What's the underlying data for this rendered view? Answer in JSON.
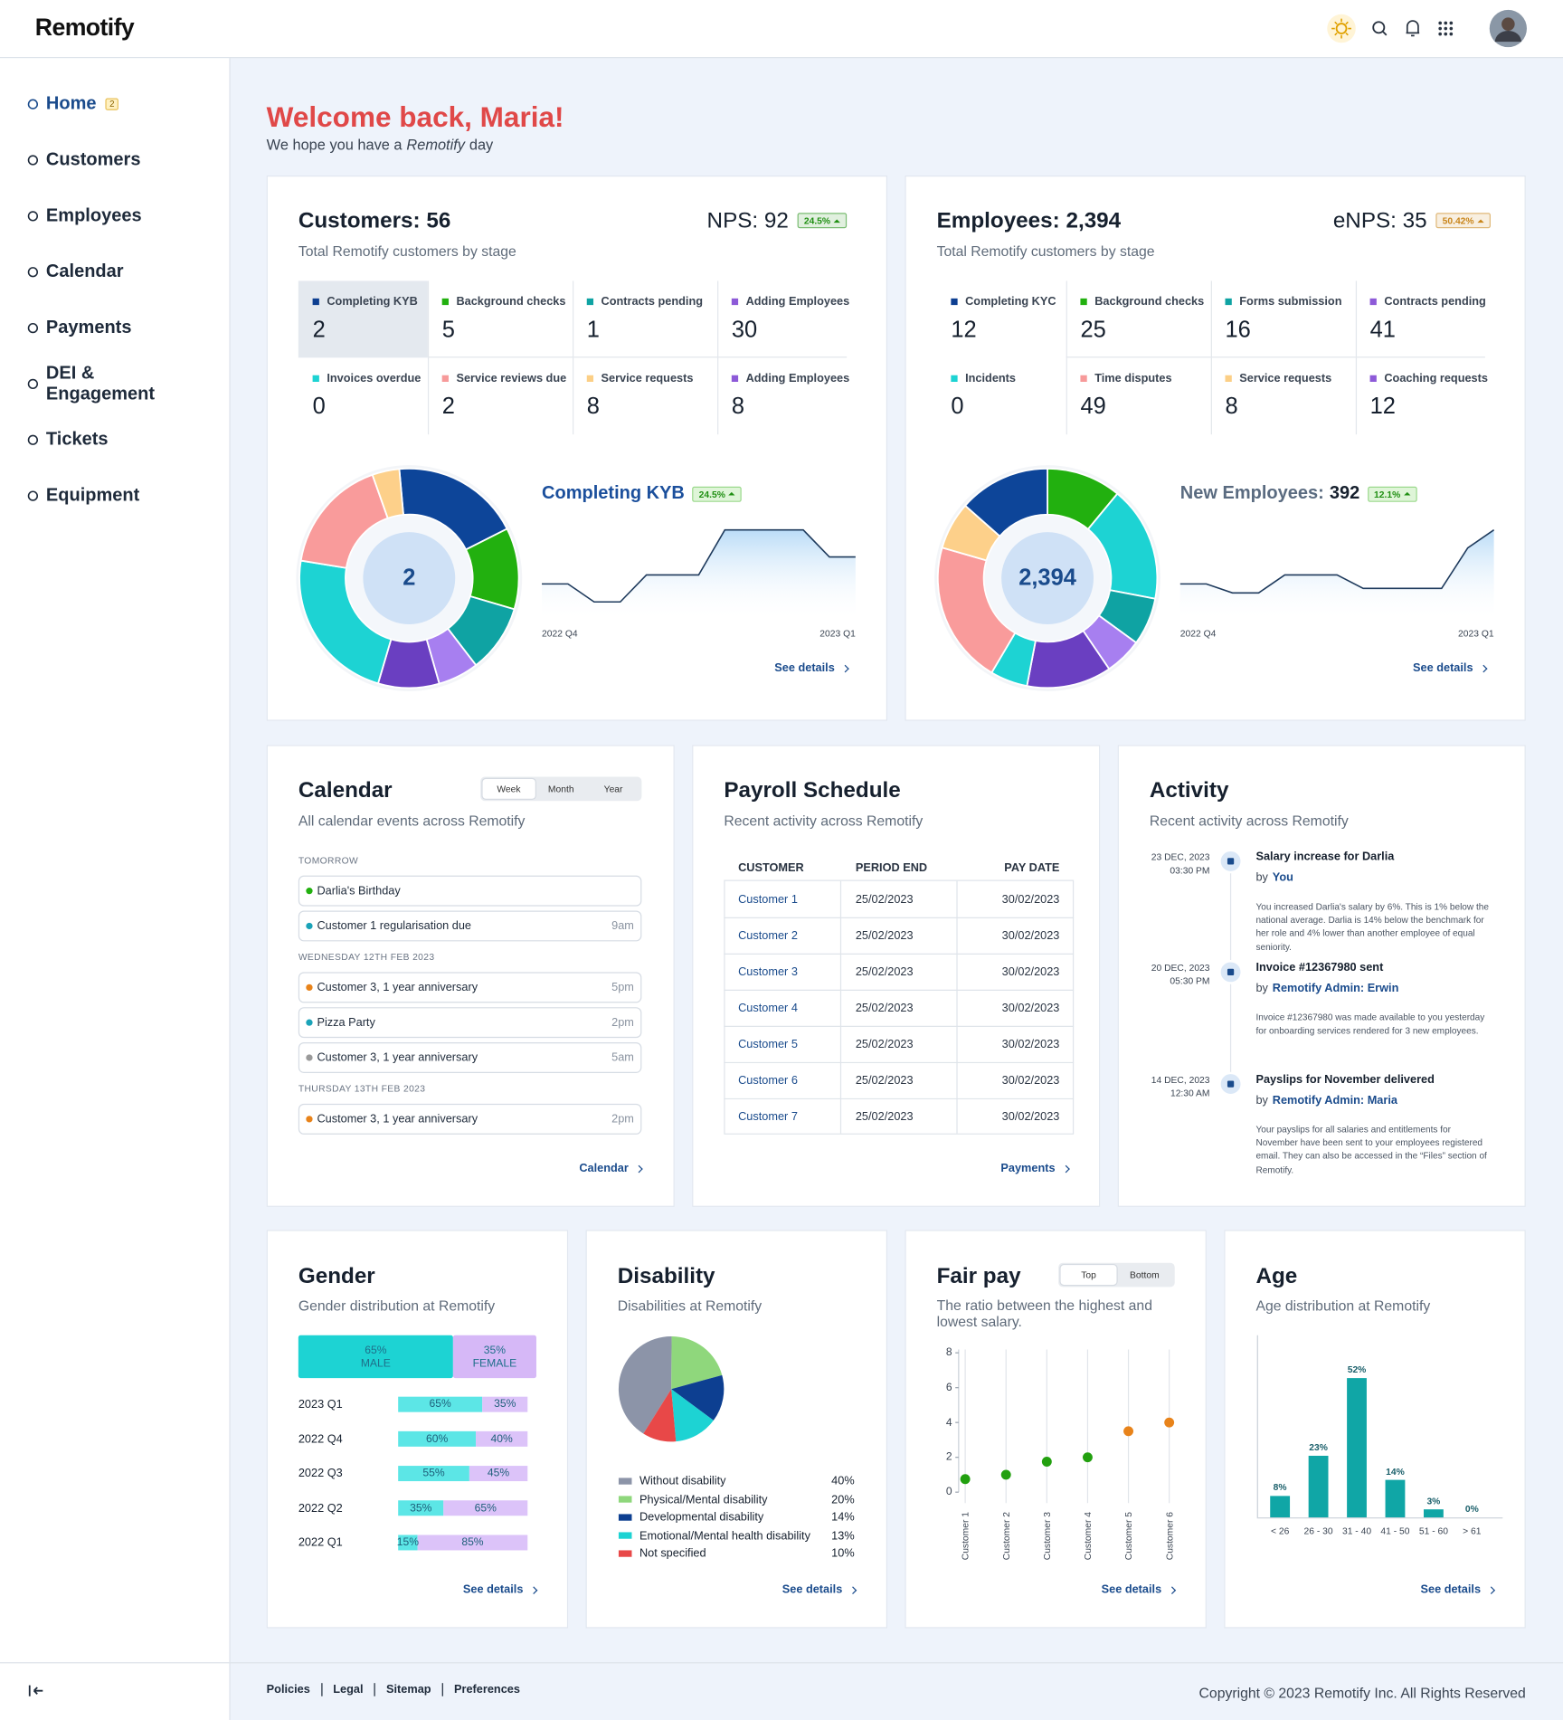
{
  "header": {
    "logo": "Remotify"
  },
  "nav": [
    {
      "label": "Home",
      "badge": "2"
    },
    {
      "label": "Customers"
    },
    {
      "label": "Employees"
    },
    {
      "label": "Calendar"
    },
    {
      "label": "Payments"
    },
    {
      "label": "DEI & Engagement"
    },
    {
      "label": "Tickets"
    },
    {
      "label": "Equipment"
    }
  ],
  "welcome": {
    "title": "Welcome back, Maria!",
    "lead": "We hope you have a",
    "brand": "Remotify",
    "tail": "day"
  },
  "customers": {
    "title": "Customers: 56",
    "score": "NPS: 92",
    "score_change": "24.5%",
    "score_change_color": "#1f8f12",
    "subtitle": "Total Remotify customers by stage",
    "selected_stage": 0,
    "stages": [
      {
        "label": "Completing KYB",
        "value": 2,
        "color": "#0d3f91"
      },
      {
        "label": "Background checks",
        "value": 5,
        "color": "#22b00f"
      },
      {
        "label": "Contracts pending",
        "value": 1,
        "color": "#0fa3a3"
      },
      {
        "label": "Adding Employees",
        "value": 30,
        "color": "#8d5ad8"
      },
      {
        "label": "Invoices overdue",
        "value": 0,
        "color": "#1dd3d3"
      },
      {
        "label": "Service reviews due",
        "value": 2,
        "color": "#f79a9a"
      },
      {
        "label": "Service requests",
        "value": 8,
        "color": "#fccf86"
      },
      {
        "label": "Adding Employees",
        "value": 8,
        "color": "#8d5ad8"
      }
    ],
    "donut": {
      "center": "2",
      "colors": [
        "#0d4599",
        "#22b00f",
        "#0fa3a3",
        "#a77ff0",
        "#6a3fc1",
        "#1dd3d3",
        "#f99b9b",
        "#fdd08a"
      ],
      "values": [
        19,
        12,
        10,
        6,
        9,
        23,
        17,
        4
      ]
    },
    "trend": {
      "title": "Completing KYB",
      "change": "24.5%",
      "x_labels": [
        "2022 Q4",
        "2023 Q1"
      ],
      "values": [
        4,
        4,
        2,
        2,
        5,
        5,
        5,
        10,
        10,
        10,
        10,
        7,
        7
      ]
    },
    "link": "See details"
  },
  "employees": {
    "title": "Employees: 2,394",
    "score": "eNPS: 35",
    "score_change": "50.42%",
    "score_change_color": "#c9851a",
    "subtitle": "Total Remotify customers by stage",
    "stages": [
      {
        "label": "Completing KYC",
        "value": 12,
        "color": "#0d3f91"
      },
      {
        "label": "Background checks",
        "value": 25,
        "color": "#22b00f"
      },
      {
        "label": "Forms submission",
        "value": 16,
        "color": "#0fa3a3"
      },
      {
        "label": "Contracts pending",
        "value": 41,
        "color": "#8d5ad8"
      },
      {
        "label": "Incidents",
        "value": 0,
        "color": "#1dd3d3"
      },
      {
        "label": "Time disputes",
        "value": 49,
        "color": "#f79a9a"
      },
      {
        "label": "Service requests",
        "value": 8,
        "color": "#fccf86"
      },
      {
        "label": "Coaching requests",
        "value": 12,
        "color": "#8d5ad8"
      }
    ],
    "donut": {
      "center": "2,394",
      "colors": [
        "#22b00f",
        "#1dd3d3",
        "#0fa3a3",
        "#a77ff0",
        "#6a3fc1",
        "#1dd3d3",
        "#f99b9b",
        "#fdd08a",
        "#0d4599"
      ],
      "values": [
        11,
        17,
        7,
        5.5,
        12.5,
        5.5,
        21,
        7,
        13.5
      ]
    },
    "trend": {
      "title": "New Employees:",
      "total": "392",
      "change": "12.1%",
      "x_labels": [
        "2022 Q4",
        "2023 Q1"
      ],
      "values": [
        4,
        4,
        3,
        3,
        5,
        5,
        5,
        3.5,
        3.5,
        3.5,
        3.5,
        8,
        10
      ]
    },
    "link": "See details"
  },
  "calendar": {
    "title": "Calendar",
    "subtitle": "All calendar events across Remotify",
    "tabs": [
      "Week",
      "Month",
      "Year"
    ],
    "active_tab": 0,
    "groups": [
      {
        "label": "TOMORROW",
        "events": [
          {
            "label": "Darlia's Birthday",
            "color": "#22b00f"
          },
          {
            "label": "Customer 1 regularisation due",
            "time": "9am",
            "color": "#1aa3b8"
          }
        ]
      },
      {
        "label": "WEDNESDAY 12TH FEB 2023",
        "events": [
          {
            "label": "Customer 3, 1 year anniversary",
            "time": "5pm",
            "color": "#e8831a"
          },
          {
            "label": "Pizza Party",
            "time": "2pm",
            "color": "#1aa3b8"
          },
          {
            "label": "Customer 3, 1 year anniversary",
            "time": "5am",
            "color": "#9a9a9a"
          }
        ]
      },
      {
        "label": "THURSDAY 13TH FEB 2023",
        "events": [
          {
            "label": "Customer 3, 1 year anniversary",
            "time": "2pm",
            "color": "#e8831a"
          }
        ]
      }
    ],
    "link": "Calendar"
  },
  "payroll": {
    "title": "Payroll Schedule",
    "subtitle": "Recent activity across Remotify",
    "columns": [
      "CUSTOMER",
      "PERIOD END",
      "PAY DATE"
    ],
    "rows": [
      [
        "Customer 1",
        "25/02/2023",
        "30/02/2023"
      ],
      [
        "Customer 2",
        "25/02/2023",
        "30/02/2023"
      ],
      [
        "Customer 3",
        "25/02/2023",
        "30/02/2023"
      ],
      [
        "Customer 4",
        "25/02/2023",
        "30/02/2023"
      ],
      [
        "Customer 5",
        "25/02/2023",
        "30/02/2023"
      ],
      [
        "Customer 6",
        "25/02/2023",
        "30/02/2023"
      ],
      [
        "Customer 7",
        "25/02/2023",
        "30/02/2023"
      ]
    ],
    "link": "Payments"
  },
  "activity": {
    "title": "Activity",
    "subtitle": "Recent activity across Remotify",
    "by": "by",
    "items": [
      {
        "date": "23 DEC, 2023",
        "time": "03:30 PM",
        "title": "Salary increase for Darlia",
        "who": "You",
        "body": "You increased Darlia's salary by 6%. This is 1% below the national average. Darlia is 14% below the benchmark for her role and 4% lower than another employee of equal seniority."
      },
      {
        "date": "20 DEC, 2023",
        "time": "05:30 PM",
        "title": "Invoice #12367980 sent",
        "who": "Remotify Admin: Erwin",
        "body": "Invoice #12367980 was made available to you yesterday for onboarding services rendered for 3 new employees."
      },
      {
        "date": "14 DEC, 2023",
        "time": "12:30 AM",
        "title": "Payslips for November delivered",
        "who": "Remotify Admin: Maria",
        "body": "Your payslips for all salaries and entitlements for November have been sent to your employees registered email. They can also be accessed in the “Files” section of Remotify."
      }
    ]
  },
  "gender": {
    "title": "Gender",
    "subtitle": "Gender distribution at Remotify",
    "names": [
      "MALE",
      "FEMALE"
    ],
    "colors": [
      "#1dd3d3",
      "#d6b8f7"
    ],
    "values": [
      65,
      35
    ],
    "value_labels": [
      "65%",
      "35%"
    ],
    "rows": [
      {
        "period": "2023 Q1",
        "values": [
          65,
          35
        ],
        "value_labels": [
          "65%",
          "35%"
        ]
      },
      {
        "period": "2022 Q4",
        "values": [
          60,
          40
        ],
        "value_labels": [
          "60%",
          "40%"
        ]
      },
      {
        "period": "2022 Q3",
        "values": [
          55,
          45
        ],
        "value_labels": [
          "55%",
          "45%"
        ]
      },
      {
        "period": "2022 Q2",
        "values": [
          35,
          65
        ],
        "value_labels": [
          "35%",
          "65%"
        ]
      },
      {
        "period": "2022 Q1",
        "values": [
          15,
          85
        ],
        "value_labels": [
          "15%",
          "85%"
        ]
      }
    ],
    "link": "See details"
  },
  "disability": {
    "title": "Disability",
    "subtitle": "Disabilities at Remotify",
    "type": "pie",
    "items": [
      {
        "name": "Without disability",
        "value": 40,
        "label": "40%",
        "color": "#8c94a8"
      },
      {
        "name": "Physical/Mental disability",
        "value": 20,
        "label": "20%",
        "color": "#8fd77c"
      },
      {
        "name": "Developmental disability",
        "value": 14,
        "label": "14%",
        "color": "#0d3f91"
      },
      {
        "name": "Emotional/Mental health disability",
        "value": 13,
        "label": "13%",
        "color": "#1dd3d3"
      },
      {
        "name": "Not specified",
        "value": 10,
        "label": "10%",
        "color": "#e84848"
      }
    ],
    "link": "See details"
  },
  "fairpay": {
    "title": "Fair pay",
    "subtitle": "The ratio between the highest and lowest salary.",
    "tabs": [
      "Top",
      "Bottom"
    ],
    "active_tab": 0,
    "type": "scatter",
    "categories": [
      "Customer 1",
      "Customer 2",
      "Customer 3",
      "Customer 4",
      "Customer 5",
      "Customer 6"
    ],
    "values": [
      0.75,
      1,
      1.75,
      2,
      3.5,
      4
    ],
    "colors": [
      "#22a00f",
      "#22a00f",
      "#22a00f",
      "#22a00f",
      "#e8831a",
      "#e8831a"
    ],
    "ylim": [
      0,
      8
    ],
    "yticks": [
      0,
      2,
      4,
      6,
      8
    ],
    "link": "See details"
  },
  "age": {
    "title": "Age",
    "subtitle": "Age distribution at Remotify",
    "type": "bar",
    "categories": [
      "< 26",
      "26 - 30",
      "31 - 40",
      "41 - 50",
      "51 - 60",
      "> 61"
    ],
    "values": [
      8,
      23,
      52,
      14,
      3,
      0
    ],
    "value_labels": [
      "8%",
      "23%",
      "52%",
      "14%",
      "3%",
      "0%"
    ],
    "color": "#10a6a6",
    "ylim": [
      0,
      60
    ],
    "link": "See details"
  },
  "footer": {
    "links": [
      "Policies",
      "Legal",
      "Sitemap",
      "Preferences"
    ],
    "copyright": "Copyright © 2023 Remotify Inc. All Rights Reserved"
  }
}
